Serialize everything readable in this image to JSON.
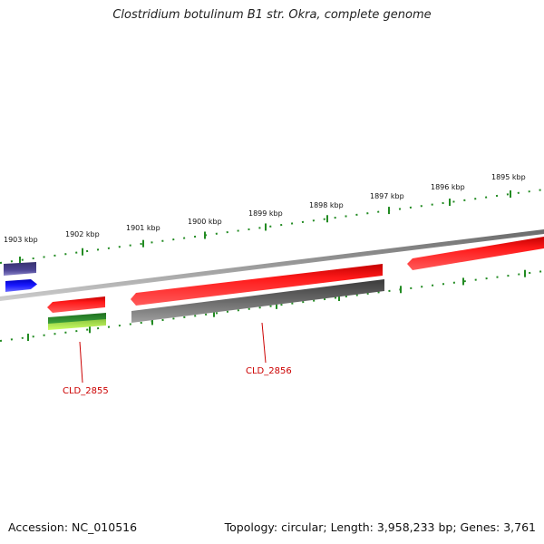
{
  "title": "Clostridium botulinum B1 str. Okra, complete genome",
  "scale": {
    "unit": "kbp",
    "ticks": [
      {
        "kbp": 1903,
        "label": "1903 kbp"
      },
      {
        "kbp": 1902,
        "label": "1902 kbp"
      },
      {
        "kbp": 1901,
        "label": "1901 kbp"
      },
      {
        "kbp": 1900,
        "label": "1900 kbp"
      },
      {
        "kbp": 1899,
        "label": "1899 kbp"
      },
      {
        "kbp": 1898,
        "label": "1898 kbp"
      },
      {
        "kbp": 1897,
        "label": "1897 kbp"
      },
      {
        "kbp": 1896,
        "label": "1896 kbp"
      },
      {
        "kbp": 1895,
        "label": "1895 kbp"
      }
    ]
  },
  "features": [
    {
      "id": "purple-block",
      "ring": "outer-1",
      "start_kbp": 1903.1,
      "end_kbp": 1902.7,
      "color": "#4a4090"
    },
    {
      "id": "blue-arrow",
      "ring": "outer-2",
      "start_kbp": 1903.1,
      "end_kbp": 1902.7,
      "color": "#1a1aff"
    },
    {
      "id": "cds-2855",
      "ring": "inner-1",
      "start_kbp": 1902.6,
      "end_kbp": 1901.7,
      "color": "#ee0000"
    },
    {
      "id": "cds-2856",
      "ring": "inner-1",
      "start_kbp": 1901.6,
      "end_kbp": 1897.4,
      "color": "#ee0000"
    },
    {
      "id": "cds-right",
      "ring": "inner-1",
      "start_kbp": 1896.9,
      "end_kbp": 1894.6,
      "color": "#ee0000"
    },
    {
      "id": "green-block",
      "ring": "inner-2a",
      "start_kbp": 1902.6,
      "end_kbp": 1901.7,
      "color": "#2e8b2e"
    },
    {
      "id": "lime-block",
      "ring": "inner-2b",
      "start_kbp": 1902.6,
      "end_kbp": 1901.7,
      "color": "#9acd32"
    },
    {
      "id": "gray-block",
      "ring": "inner-2",
      "start_kbp": 1901.6,
      "end_kbp": 1897.4,
      "color": "#606060"
    }
  ],
  "gene_labels": [
    {
      "id": "label-2855",
      "text": "CLD_2855"
    },
    {
      "id": "label-2856",
      "text": "CLD_2856"
    }
  ],
  "footer": {
    "accession": "Accession: NC_010516",
    "summary": "Topology: circular; Length: 3,958,233 bp; Genes: 3,761"
  },
  "colors": {
    "backbone": "#888888",
    "ticks": "#228B22",
    "label_line": "#cc0000"
  }
}
